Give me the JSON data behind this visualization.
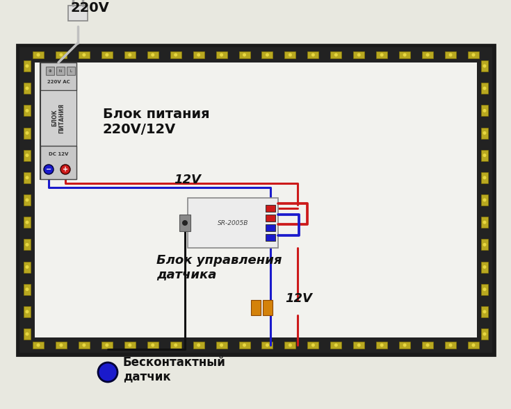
{
  "bg_color": "#e8e8e0",
  "fig_w": 7.35,
  "fig_h": 5.89,
  "title_220v": "220V",
  "psu_label": "Блок питания\n220V/12V",
  "ctrl_label": "Блок управления\nдатчика",
  "sensor_label": "Бесконтактный\nдатчик",
  "label_12v_top": "12V",
  "label_12v_bot": "12V",
  "wire_blue": "#1a1acc",
  "wire_red": "#cc1a1a",
  "wire_black": "#111111",
  "wire_white": "#c0c0c0",
  "wire_lw": 2.2
}
